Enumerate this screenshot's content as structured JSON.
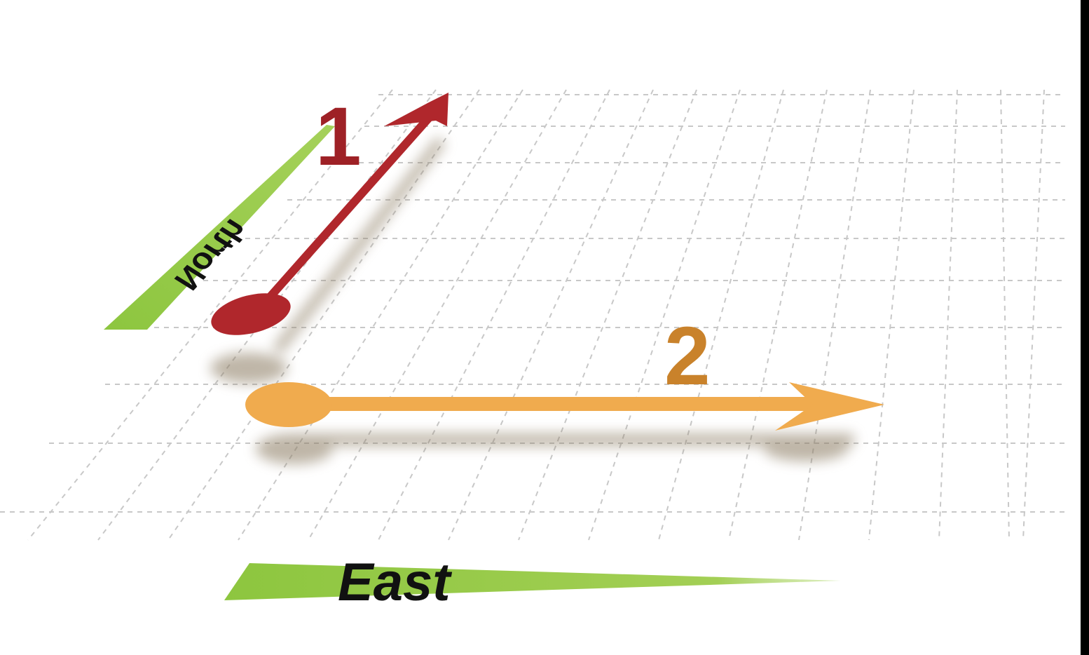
{
  "labels": {
    "north": "North",
    "east": "East"
  },
  "vectors": [
    {
      "id": "1",
      "label": "1",
      "direction": "north-east",
      "color": "#b0272c",
      "label_color": "#9e2126"
    },
    {
      "id": "2",
      "label": "2",
      "direction": "east",
      "color": "#f0ab4e",
      "label_color": "#c9822b"
    }
  ],
  "colors": {
    "axis_band": "#8dc63f",
    "grid": "#c8c8c8",
    "shadow": "#8a7a60",
    "background": "#ffffff",
    "label_text": "#111111"
  },
  "icons": {
    "vector_1": "arrow-up-right-icon",
    "vector_2": "arrow-right-icon"
  }
}
